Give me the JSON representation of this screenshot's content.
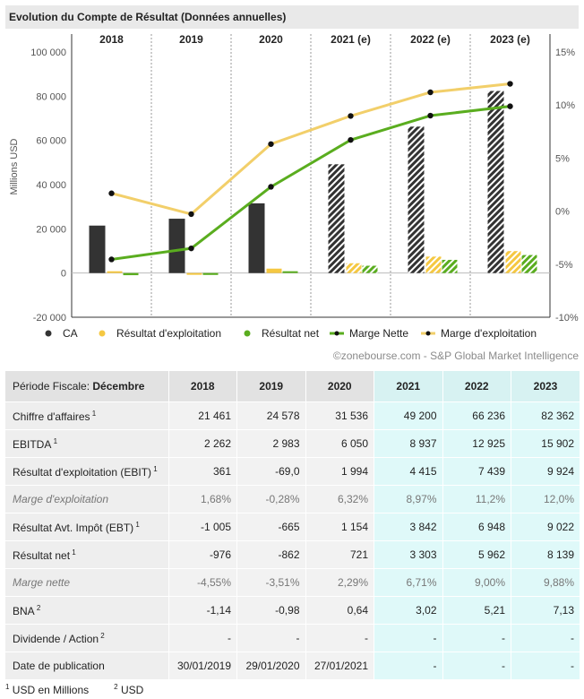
{
  "title": "Evolution du Compte de Résultat (Données annuelles)",
  "copyright": "©zonebourse.com - S&P Global Market Intelligence",
  "chart_data": {
    "type": "bar",
    "categories": [
      "2018",
      "2019",
      "2020",
      "2021 (e)",
      "2022 (e)",
      "2023 (e)"
    ],
    "estimated_from_index": 3,
    "ylabel": "Millions USD",
    "ylim": [
      -20000,
      100000
    ],
    "y_ticks": [
      "100 000",
      "80 000",
      "60 000",
      "40 000",
      "20 000",
      "0",
      "-20 000"
    ],
    "y_tick_values": [
      100000,
      80000,
      60000,
      40000,
      20000,
      0,
      -20000
    ],
    "y2lim": [
      -10,
      15
    ],
    "y2_ticks": [
      "15%",
      "10%",
      "5%",
      "0%",
      "-5%",
      "-10%"
    ],
    "y2_tick_values": [
      15,
      10,
      5,
      0,
      -5,
      -10
    ],
    "grid": false,
    "legend_position": "bottom",
    "series": [
      {
        "name": "CA",
        "kind": "bar",
        "color": "#333333",
        "values": [
          21461,
          24578,
          31536,
          49200,
          66236,
          82362
        ]
      },
      {
        "name": "Résultat d'exploitation",
        "kind": "bar",
        "color": "#f5c842",
        "values": [
          361,
          -69,
          1994,
          4415,
          7439,
          9924
        ]
      },
      {
        "name": "Résultat net",
        "kind": "bar",
        "color": "#5aad1f",
        "values": [
          -976,
          -862,
          721,
          3303,
          5962,
          8139
        ]
      },
      {
        "name": "Marge Nette",
        "kind": "line",
        "axis": "right",
        "color": "#5aad1f",
        "values": [
          -4.55,
          -3.51,
          2.29,
          6.71,
          9.0,
          9.88
        ]
      },
      {
        "name": "Marge d'exploitation",
        "kind": "line",
        "axis": "right",
        "color": "#f2cf6a",
        "values": [
          1.68,
          -0.28,
          6.32,
          8.97,
          11.2,
          12.0
        ]
      }
    ]
  },
  "table": {
    "period_label": "Période Fiscale: ",
    "period_value": "Décembre",
    "years": [
      "2018",
      "2019",
      "2020",
      "2021",
      "2022",
      "2023"
    ],
    "rows": [
      {
        "label": "Chiffre d'affaires",
        "sup": "1",
        "italic": false,
        "values": [
          "21 461",
          "24 578",
          "31 536",
          "49 200",
          "66 236",
          "82 362"
        ]
      },
      {
        "label": "EBITDA",
        "sup": "1",
        "italic": false,
        "values": [
          "2 262",
          "2 983",
          "6 050",
          "8 937",
          "12 925",
          "15 902"
        ]
      },
      {
        "label": "Résultat d'exploitation (EBIT)",
        "sup": "1",
        "italic": false,
        "values": [
          "361",
          "-69,0",
          "1 994",
          "4 415",
          "7 439",
          "9 924"
        ]
      },
      {
        "label": "Marge d'exploitation",
        "sup": "",
        "italic": true,
        "values": [
          "1,68%",
          "-0,28%",
          "6,32%",
          "8,97%",
          "11,2%",
          "12,0%"
        ]
      },
      {
        "label": "Résultat Avt. Impôt (EBT)",
        "sup": "1",
        "italic": false,
        "values": [
          "-1 005",
          "-665",
          "1 154",
          "3 842",
          "6 948",
          "9 022"
        ]
      },
      {
        "label": "Résultat net",
        "sup": "1",
        "italic": false,
        "values": [
          "-976",
          "-862",
          "721",
          "3 303",
          "5 962",
          "8 139"
        ]
      },
      {
        "label": "Marge nette",
        "sup": "",
        "italic": true,
        "values": [
          "-4,55%",
          "-3,51%",
          "2,29%",
          "6,71%",
          "9,00%",
          "9,88%"
        ]
      },
      {
        "label": "BNA",
        "sup": "2",
        "italic": false,
        "values": [
          "-1,14",
          "-0,98",
          "0,64",
          "3,02",
          "5,21",
          "7,13"
        ]
      },
      {
        "label": "Dividende / Action",
        "sup": "2",
        "italic": false,
        "values": [
          "-",
          "-",
          "-",
          "-",
          "-",
          "-"
        ]
      },
      {
        "label": "Date de publication",
        "sup": "",
        "italic": false,
        "values": [
          "30/01/2019",
          "29/01/2020",
          "27/01/2021",
          "-",
          "-",
          "-"
        ]
      }
    ]
  },
  "footnotes": [
    {
      "sup": "1",
      "text": "USD en Millions"
    },
    {
      "sup": "2",
      "text": "USD"
    }
  ]
}
